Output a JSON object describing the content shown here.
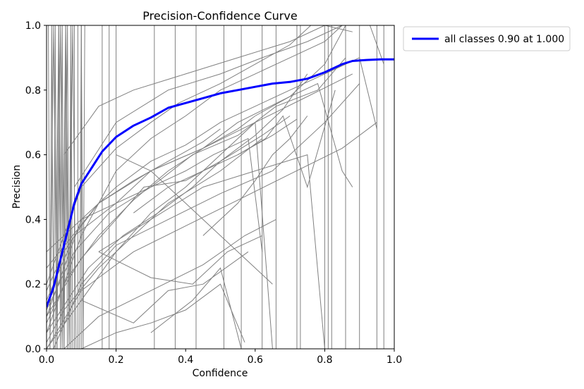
{
  "chart_data": {
    "type": "line",
    "title": "Precision-Confidence Curve",
    "xlabel": "Confidence",
    "ylabel": "Precision",
    "xlim": [
      0.0,
      1.0
    ],
    "ylim": [
      0.0,
      1.0
    ],
    "xticks": [
      "0.0",
      "0.2",
      "0.4",
      "0.6",
      "0.8",
      "1.0"
    ],
    "yticks": [
      "0.0",
      "0.2",
      "0.4",
      "0.6",
      "0.8",
      "1.0"
    ],
    "grid": false,
    "legend_position": "outside-top-right",
    "colors": {
      "main": "#0000ff",
      "classes": "#808080"
    },
    "main_series": {
      "name": "all classes 0.90 at 1.000",
      "x": [
        0.0,
        0.02,
        0.05,
        0.08,
        0.1,
        0.13,
        0.16,
        0.2,
        0.25,
        0.3,
        0.35,
        0.4,
        0.45,
        0.5,
        0.55,
        0.6,
        0.65,
        0.7,
        0.75,
        0.8,
        0.85,
        0.88,
        0.92,
        0.96,
        1.0
      ],
      "y": [
        0.13,
        0.19,
        0.32,
        0.45,
        0.51,
        0.56,
        0.61,
        0.655,
        0.69,
        0.715,
        0.745,
        0.76,
        0.775,
        0.79,
        0.8,
        0.81,
        0.82,
        0.825,
        0.835,
        0.855,
        0.88,
        0.89,
        0.893,
        0.895,
        0.895
      ]
    },
    "class_series": [
      {
        "x": [
          0.0,
          0.05,
          0.1,
          0.2,
          0.3,
          0.4,
          0.5,
          0.6,
          0.7,
          0.8,
          0.85
        ],
        "y": [
          0.05,
          0.2,
          0.35,
          0.55,
          0.65,
          0.72,
          0.8,
          0.85,
          0.9,
          0.95,
          1.0
        ]
      },
      {
        "x": [
          0.0,
          0.05,
          0.1,
          0.2,
          0.3,
          0.4,
          0.5,
          0.6,
          0.7,
          0.8,
          0.9,
          0.95
        ],
        "y": [
          0.1,
          0.25,
          0.4,
          0.5,
          0.58,
          0.63,
          0.7,
          0.75,
          0.8,
          0.85,
          0.9,
          0.68
        ]
      },
      {
        "x": [
          0.0,
          0.1,
          0.2,
          0.3,
          0.4,
          0.5,
          0.6,
          0.65
        ],
        "y": [
          0.0,
          0.15,
          0.3,
          0.42,
          0.5,
          0.6,
          0.7,
          0.0
        ]
      },
      {
        "x": [
          0.0,
          0.05,
          0.15,
          0.25,
          0.35,
          0.5,
          0.62
        ],
        "y": [
          0.02,
          0.12,
          0.25,
          0.35,
          0.45,
          0.55,
          0.65
        ]
      },
      {
        "x": [
          0.0,
          0.08,
          0.2,
          0.3,
          0.45,
          0.55,
          0.7,
          0.8,
          0.86
        ],
        "y": [
          0.15,
          0.35,
          0.45,
          0.55,
          0.62,
          0.7,
          0.78,
          0.88,
          1.0
        ]
      },
      {
        "x": [
          0.0,
          0.1,
          0.2,
          0.3,
          0.38,
          0.5,
          0.6,
          0.7,
          0.76
        ],
        "y": [
          0.2,
          0.5,
          0.62,
          0.7,
          0.76,
          0.82,
          0.88,
          0.94,
          1.0
        ]
      },
      {
        "x": [
          0.02,
          0.1,
          0.2,
          0.35,
          0.5,
          0.65,
          0.8,
          0.9
        ],
        "y": [
          0.0,
          0.2,
          0.32,
          0.4,
          0.48,
          0.55,
          0.7,
          0.82
        ]
      },
      {
        "x": [
          0.0,
          0.1,
          0.2,
          0.3,
          0.4,
          0.48,
          0.58,
          0.62
        ],
        "y": [
          0.3,
          0.4,
          0.45,
          0.5,
          0.55,
          0.6,
          0.65,
          0.3
        ]
      },
      {
        "x": [
          0.0,
          0.06,
          0.15,
          0.25,
          0.35,
          0.45,
          0.55,
          0.6
        ],
        "y": [
          0.08,
          0.22,
          0.35,
          0.46,
          0.55,
          0.62,
          0.68,
          0.72
        ]
      },
      {
        "x": [
          0.0,
          0.1,
          0.2,
          0.28,
          0.4,
          0.5,
          0.62,
          0.7
        ],
        "y": [
          0.1,
          0.28,
          0.4,
          0.5,
          0.52,
          0.58,
          0.66,
          0.72
        ]
      },
      {
        "x": [
          0.0,
          0.05,
          0.1,
          0.15,
          0.25,
          0.35,
          0.45,
          0.5
        ],
        "y": [
          0.18,
          0.3,
          0.38,
          0.45,
          0.52,
          0.58,
          0.64,
          0.68
        ]
      },
      {
        "x": [
          0.0,
          0.12,
          0.22,
          0.32,
          0.42,
          0.5,
          0.6,
          0.68,
          0.75
        ],
        "y": [
          0.05,
          0.25,
          0.35,
          0.42,
          0.5,
          0.58,
          0.66,
          0.74,
          0.85
        ]
      },
      {
        "x": [
          0.0,
          0.08,
          0.18,
          0.3,
          0.42,
          0.55,
          0.66,
          0.78,
          0.86
        ],
        "y": [
          0.12,
          0.3,
          0.42,
          0.5,
          0.6,
          0.66,
          0.75,
          0.8,
          0.9
        ]
      },
      {
        "x": [
          0.0,
          0.15,
          0.3,
          0.45,
          0.6,
          0.75,
          0.88
        ],
        "y": [
          0.25,
          0.45,
          0.55,
          0.62,
          0.7,
          0.78,
          0.85
        ]
      },
      {
        "x": [
          0.0,
          0.1,
          0.25,
          0.4,
          0.55,
          0.7,
          0.85,
          0.95
        ],
        "y": [
          0.0,
          0.18,
          0.3,
          0.38,
          0.46,
          0.54,
          0.62,
          0.7
        ]
      },
      {
        "x": [
          0.05,
          0.15,
          0.3,
          0.45,
          0.57,
          0.66
        ],
        "y": [
          0.0,
          0.1,
          0.18,
          0.26,
          0.35,
          0.4
        ]
      },
      {
        "x": [
          0.1,
          0.2,
          0.3,
          0.4,
          0.5,
          0.57
        ],
        "y": [
          0.0,
          0.05,
          0.08,
          0.12,
          0.2,
          0.02
        ]
      },
      {
        "x": [
          0.1,
          0.25,
          0.35,
          0.45,
          0.58
        ],
        "y": [
          0.15,
          0.08,
          0.18,
          0.2,
          0.3
        ]
      },
      {
        "x": [
          0.15,
          0.3,
          0.42,
          0.52,
          0.62
        ],
        "y": [
          0.3,
          0.22,
          0.2,
          0.3,
          0.35
        ]
      },
      {
        "x": [
          0.2,
          0.3,
          0.4,
          0.5,
          0.6,
          0.65
        ],
        "y": [
          0.6,
          0.55,
          0.45,
          0.35,
          0.25,
          0.2
        ]
      },
      {
        "x": [
          0.15,
          0.3,
          0.45,
          0.6,
          0.75,
          0.8
        ],
        "y": [
          0.3,
          0.4,
          0.5,
          0.55,
          0.6,
          0.0
        ]
      },
      {
        "x": [
          0.05,
          0.15,
          0.25,
          0.4,
          0.55,
          0.7,
          0.8,
          0.88
        ],
        "y": [
          0.6,
          0.75,
          0.8,
          0.85,
          0.9,
          0.95,
          1.0,
          0.98
        ]
      },
      {
        "x": [
          0.08,
          0.2,
          0.35,
          0.5,
          0.62,
          0.75,
          0.85,
          0.93,
          0.97
        ],
        "y": [
          0.5,
          0.7,
          0.8,
          0.85,
          0.9,
          0.95,
          1.0,
          1.0,
          0.88
        ]
      },
      {
        "x": [
          0.45,
          0.55,
          0.6,
          0.65,
          0.7,
          0.75
        ],
        "y": [
          0.35,
          0.45,
          0.52,
          0.6,
          0.65,
          0.72
        ]
      },
      {
        "x": [
          0.3,
          0.42,
          0.5,
          0.56
        ],
        "y": [
          0.05,
          0.15,
          0.25,
          0.0
        ]
      },
      {
        "x": [
          0.55,
          0.63,
          0.68,
          0.75,
          0.83
        ],
        "y": [
          0.6,
          0.65,
          0.72,
          0.5,
          0.8
        ]
      },
      {
        "x": [
          0.6,
          0.7,
          0.78,
          0.85,
          0.88
        ],
        "y": [
          0.72,
          0.78,
          0.82,
          0.55,
          0.5
        ]
      },
      {
        "x": [
          0.25,
          0.35,
          0.45,
          0.55,
          0.65,
          0.72
        ],
        "y": [
          0.42,
          0.5,
          0.55,
          0.6,
          0.66,
          0.71
        ]
      }
    ],
    "spikes": [
      {
        "x": [
          0.005,
          0.01,
          0.015,
          0.02,
          0.025,
          0.03,
          0.035,
          0.04,
          0.045,
          0.05,
          0.055,
          0.06
        ],
        "y": [
          1.0,
          0.0,
          1.0,
          0.0,
          1.0,
          0.0,
          1.0,
          0.0,
          1.0,
          0.0,
          1.0,
          0.0
        ]
      },
      {
        "x": [
          0.01,
          0.02,
          0.03,
          0.04,
          0.05,
          0.06,
          0.065,
          0.07,
          0.075
        ],
        "y": [
          0.0,
          1.0,
          0.0,
          1.0,
          0.0,
          1.0,
          0.0,
          1.0,
          0.0
        ]
      },
      {
        "x": [
          0.025,
          0.035,
          0.045,
          0.055,
          0.065,
          0.075,
          0.085
        ],
        "y": [
          0.0,
          1.0,
          0.0,
          1.0,
          0.0,
          1.0,
          0.0
        ]
      },
      {
        "x": [
          0.095,
          0.1,
          0.105,
          0.11
        ],
        "y": [
          0.0,
          1.0,
          0.0,
          1.0
        ]
      }
    ],
    "vertical_lines": [
      0.07,
      0.08,
      0.09,
      0.1,
      0.16,
      0.18,
      0.2,
      0.31,
      0.37,
      0.43,
      0.51,
      0.56,
      0.62,
      0.66,
      0.72,
      0.73,
      0.8,
      0.81,
      0.82,
      0.86,
      0.9,
      0.95,
      0.97
    ]
  }
}
